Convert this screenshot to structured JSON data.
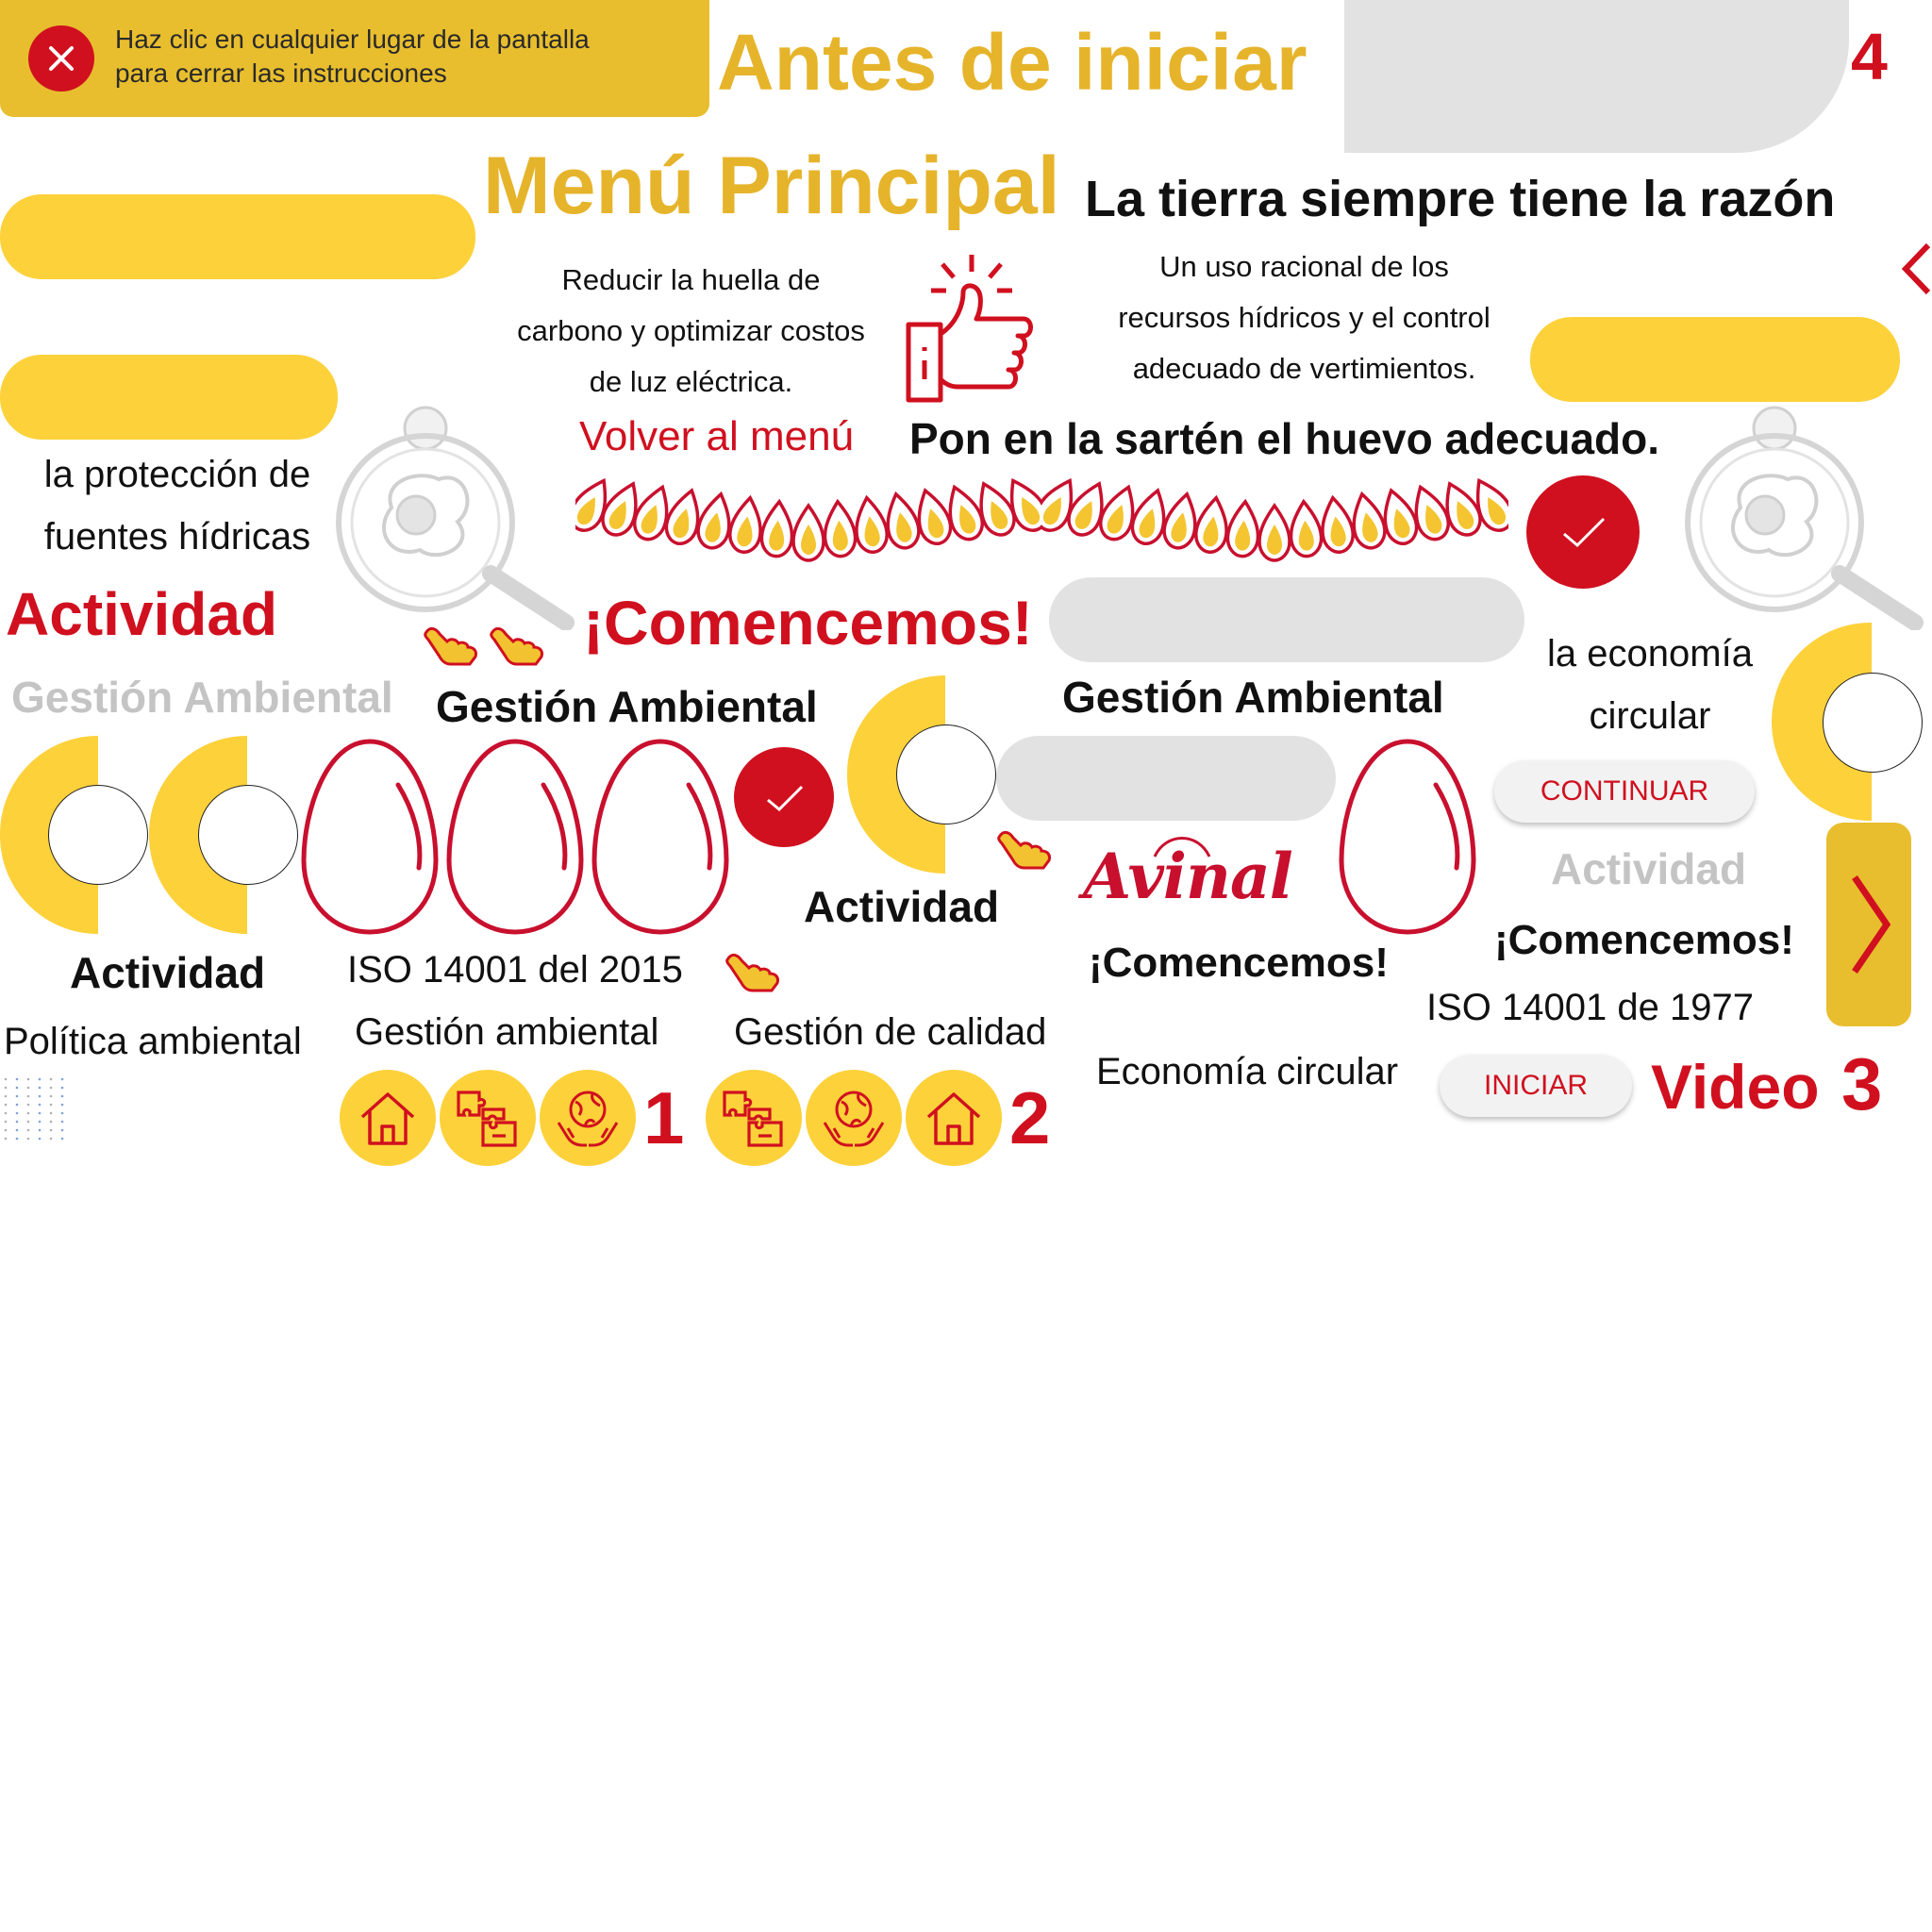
{
  "colors": {
    "yellow": "#FDD13A",
    "gold": "#E6B42B",
    "red": "#D0101F",
    "grey": "#C4C4C4",
    "light_grey": "#E2E2E2"
  },
  "instructions": {
    "close_icon": "close-icon",
    "text_line1": "Haz clic en cualquier lugar de la pantalla",
    "text_line2": "para cerrar las instrucciones"
  },
  "titles": {
    "antes_de_iniciar": "Antes de iniciar",
    "menu_principal": "Menú Principal",
    "tierra": "La tierra siempre tiene la razón",
    "sarten": "Pon en la sartén el huevo adecuado."
  },
  "page_numbers": {
    "n1": "1",
    "n2": "2",
    "n3": "3",
    "n4": "4"
  },
  "texts": {
    "reducir_l1": "Reducir la huella de",
    "reducir_l2": "carbono y optimizar costos",
    "reducir_l3": "de luz eléctrica.",
    "uso_l1": "Un uso racional de los",
    "uso_l2": "recursos hídricos y el control",
    "uso_l3": "adecuado de vertimientos.",
    "proteccion_l1": "la protección de",
    "proteccion_l2": "fuentes hídricas",
    "economia_l1": "la economía",
    "economia_l2": "circular",
    "volver": "Volver al menú",
    "actividad_red": "Actividad",
    "actividad_1": "Actividad",
    "actividad_2": "Actividad",
    "actividad_grey": "Actividad",
    "gestion_grey": "Gestión Ambiental",
    "gestion_1": "Gestión Ambiental",
    "gestion_2": "Gestión Ambiental",
    "comencemos_red": "¡Comencemos!",
    "comencemos_1": "¡Comencemos!",
    "comencemos_2": "¡Comencemos!",
    "iso_2015": "ISO 14001 del 2015",
    "iso_1977": "ISO 14001 de 1977",
    "politica": "Política ambiental",
    "gestion_ambiental": "Gestión ambiental",
    "gestion_calidad": "Gestión de calidad",
    "economia_circular": "Economía circular",
    "video": "Video"
  },
  "buttons": {
    "continuar": "CONTINUAR",
    "iniciar": "INICIAR"
  },
  "logo": {
    "brand": "Avinal"
  },
  "icons": [
    "close-icon",
    "thumbs-up-icon",
    "check-icon",
    "hand-pointer-icon",
    "fried-egg-pan-icon",
    "egg-outline-icon",
    "flame-icon",
    "home-icon",
    "puzzle-icon",
    "globe-hands-icon",
    "chevron-left-icon",
    "chevron-right-icon"
  ]
}
